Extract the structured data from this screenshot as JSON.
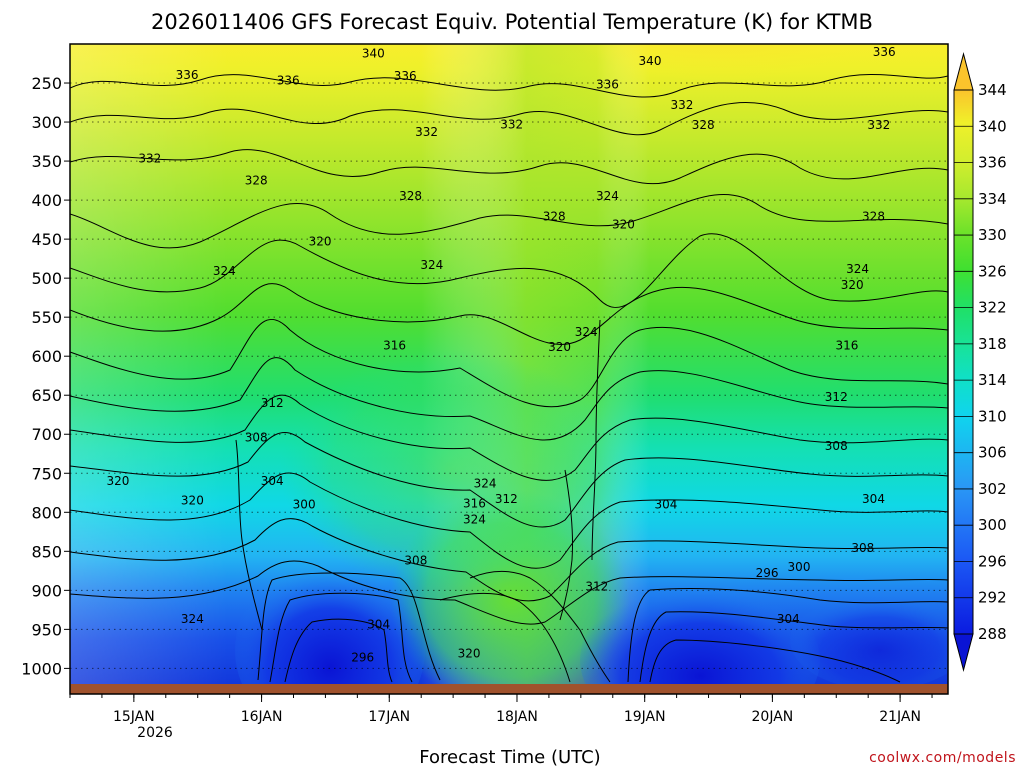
{
  "chart_data": {
    "type": "contour",
    "title": "2026011406 GFS Forecast Equiv. Potential Temperature (K) for KTMB",
    "xlabel": "Forecast Time (UTC)",
    "ylabel": "",
    "credit": "coolwx.com/models",
    "y_axis": {
      "range": [
        200,
        1020
      ],
      "ticks": [
        250,
        300,
        350,
        400,
        450,
        500,
        550,
        600,
        650,
        700,
        750,
        800,
        850,
        900,
        950,
        1000
      ],
      "tick_labels": [
        "250",
        "300",
        "350",
        "400",
        "450",
        "500",
        "550",
        "600",
        "650",
        "700",
        "750",
        "800",
        "850",
        "900",
        "950",
        "1000"
      ]
    },
    "x_axis": {
      "range_hours": [
        6,
        171
      ],
      "ticks_hours": [
        18,
        42,
        66,
        90,
        114,
        138,
        162
      ],
      "tick_labels": [
        "15JAN",
        "16JAN",
        "17JAN",
        "18JAN",
        "19JAN",
        "20JAN",
        "21JAN"
      ],
      "year_label": "2026"
    },
    "colorbar": {
      "levels": [
        288,
        292,
        296,
        300,
        302,
        306,
        310,
        314,
        318,
        322,
        326,
        330,
        334,
        336,
        340,
        344
      ],
      "colors": [
        "#0b1be0",
        "#1039f2",
        "#1c5af5",
        "#2f7cf5",
        "#2a98f5",
        "#1fb8f5",
        "#10d4ee",
        "#10e0c6",
        "#18e299",
        "#20e066",
        "#40e030",
        "#70e22a",
        "#a6e82e",
        "#d2ee2e",
        "#f0f02a",
        "#fbe22a",
        "#fac32c"
      ]
    },
    "contour_labels": [
      {
        "text": "340",
        "hour": 63,
        "p": 212
      },
      {
        "text": "340",
        "hour": 115,
        "p": 222
      },
      {
        "text": "336",
        "hour": 159,
        "p": 210
      },
      {
        "text": "336",
        "hour": 28,
        "p": 240
      },
      {
        "text": "336",
        "hour": 47,
        "p": 247
      },
      {
        "text": "336",
        "hour": 69,
        "p": 241
      },
      {
        "text": "336",
        "hour": 107,
        "p": 252
      },
      {
        "text": "332",
        "hour": 121,
        "p": 278
      },
      {
        "text": "332",
        "hour": 73,
        "p": 313
      },
      {
        "text": "332",
        "hour": 89,
        "p": 303
      },
      {
        "text": "328",
        "hour": 125,
        "p": 304
      },
      {
        "text": "332",
        "hour": 158,
        "p": 304
      },
      {
        "text": "332",
        "hour": 21,
        "p": 347
      },
      {
        "text": "328",
        "hour": 41,
        "p": 375
      },
      {
        "text": "328",
        "hour": 70,
        "p": 395
      },
      {
        "text": "328",
        "hour": 97,
        "p": 421
      },
      {
        "text": "324",
        "hour": 107,
        "p": 395
      },
      {
        "text": "328",
        "hour": 157,
        "p": 421
      },
      {
        "text": "320",
        "hour": 53,
        "p": 453
      },
      {
        "text": "324",
        "hour": 74,
        "p": 483
      },
      {
        "text": "320",
        "hour": 110,
        "p": 431
      },
      {
        "text": "324",
        "hour": 35,
        "p": 491
      },
      {
        "text": "324",
        "hour": 154,
        "p": 488
      },
      {
        "text": "320",
        "hour": 153,
        "p": 509
      },
      {
        "text": "316",
        "hour": 67,
        "p": 586
      },
      {
        "text": "324",
        "hour": 103,
        "p": 569
      },
      {
        "text": "320",
        "hour": 98,
        "p": 588
      },
      {
        "text": "316",
        "hour": 152,
        "p": 586
      },
      {
        "text": "312",
        "hour": 44,
        "p": 660
      },
      {
        "text": "312",
        "hour": 150,
        "p": 652
      },
      {
        "text": "308",
        "hour": 41,
        "p": 704
      },
      {
        "text": "308",
        "hour": 150,
        "p": 715
      },
      {
        "text": "304",
        "hour": 44,
        "p": 760
      },
      {
        "text": "320",
        "hour": 15,
        "p": 760
      },
      {
        "text": "300",
        "hour": 50,
        "p": 790
      },
      {
        "text": "324",
        "hour": 84,
        "p": 763
      },
      {
        "text": "316",
        "hour": 82,
        "p": 789
      },
      {
        "text": "312",
        "hour": 88,
        "p": 783
      },
      {
        "text": "324",
        "hour": 82,
        "p": 809
      },
      {
        "text": "304",
        "hour": 118,
        "p": 790
      },
      {
        "text": "304",
        "hour": 157,
        "p": 783
      },
      {
        "text": "320",
        "hour": 29,
        "p": 785
      },
      {
        "text": "308",
        "hour": 71,
        "p": 862
      },
      {
        "text": "308",
        "hour": 155,
        "p": 846
      },
      {
        "text": "312",
        "hour": 105,
        "p": 895
      },
      {
        "text": "296",
        "hour": 137,
        "p": 878
      },
      {
        "text": "300",
        "hour": 143,
        "p": 870
      },
      {
        "text": "324",
        "hour": 29,
        "p": 937
      },
      {
        "text": "304",
        "hour": 64,
        "p": 944
      },
      {
        "text": "304",
        "hour": 141,
        "p": 937
      },
      {
        "text": "320",
        "hour": 81,
        "p": 981
      },
      {
        "text": "296",
        "hour": 61,
        "p": 986
      }
    ]
  }
}
